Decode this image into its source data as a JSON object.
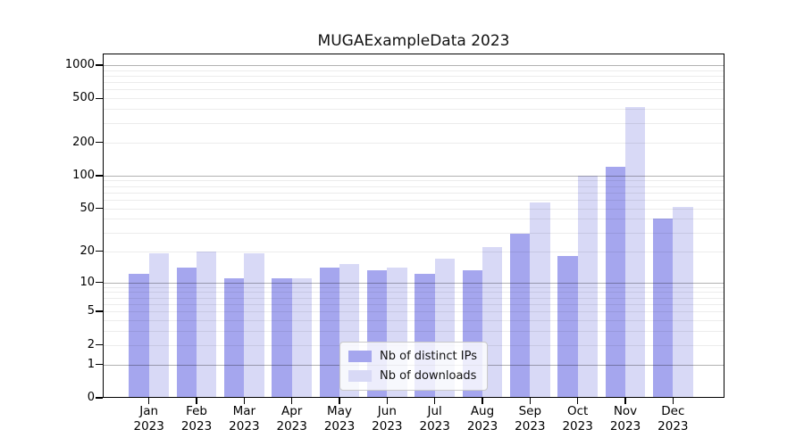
{
  "chart_data": {
    "type": "bar",
    "title": "MUGAExampleData 2023",
    "months": [
      "Jan",
      "Feb",
      "Mar",
      "Apr",
      "May",
      "Jun",
      "Jul",
      "Aug",
      "Sep",
      "Oct",
      "Nov",
      "Dec"
    ],
    "year_label": "2023",
    "series": [
      {
        "name": "Nb of distinct IPs",
        "color": "#a5a6ee",
        "values": [
          12,
          14,
          11,
          11,
          14,
          13,
          12,
          13,
          29,
          18,
          120,
          40
        ]
      },
      {
        "name": "Nb of downloads",
        "color": "#d8d9f6",
        "values": [
          19,
          20,
          19,
          11,
          15,
          14,
          17,
          22,
          57,
          100,
          420,
          52
        ]
      }
    ],
    "yscale": "log1p",
    "yticks": [
      0,
      1,
      2,
      5,
      10,
      20,
      50,
      100,
      200,
      500,
      1000
    ],
    "ylim": [
      0,
      1270
    ],
    "grid": {
      "major_at": [
        1,
        10,
        100,
        1000
      ],
      "minor_decades": [
        1,
        10,
        100
      ],
      "minor_multiples": [
        2,
        3,
        4,
        5,
        6,
        7,
        8,
        9
      ]
    },
    "legend": {
      "position": "lower center",
      "labels": [
        "Nb of distinct IPs",
        "Nb of downloads"
      ]
    },
    "colors": {
      "axis": "#000000",
      "major_grid": "rgba(0,0,0,0.30)",
      "minor_grid": "rgba(0,0,0,0.075)",
      "background": "#ffffff"
    }
  }
}
